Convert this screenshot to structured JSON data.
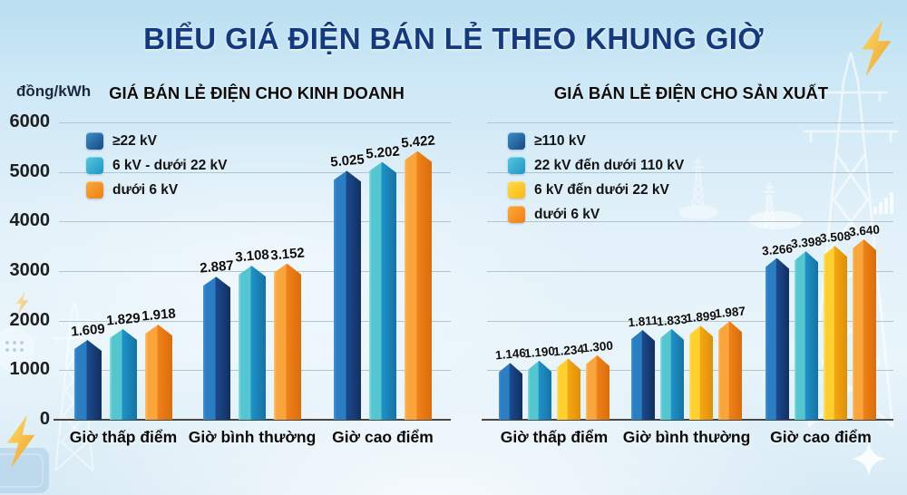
{
  "page": {
    "title": "BIỂU GIÁ ĐIỆN BÁN LẺ THEO KHUNG GIỜ",
    "unit_label": "đồng/kWh"
  },
  "decor": {
    "icons": [
      "lightning-bolt",
      "transmission-tower",
      "sparkle",
      "cloud",
      "mini-bar-chart"
    ],
    "bolt_color_top": "#ffdc63",
    "bolt_color_bottom": "#f29b1d",
    "line_art_color": "#ffffff"
  },
  "chart_data": [
    {
      "type": "bar",
      "title": "GIÁ BÁN LẺ ĐIỆN CHO KINH DOANH",
      "categories": [
        "Giờ thấp điểm",
        "Giờ bình thường",
        "Giờ cao điểm"
      ],
      "series": [
        {
          "name": "≥22 kV",
          "values": [
            1609,
            2887,
            5025
          ],
          "labels": [
            "1.609",
            "2.887",
            "5.025"
          ],
          "color_hi": "#4795d3",
          "color_light": "#2b7ec2",
          "color_dark": "#1a4b8e",
          "color_edge": "#122f60",
          "swatch_from": "#3f8cc9",
          "swatch_to": "#154a86"
        },
        {
          "name": "6 kV - dưới 22 kV",
          "values": [
            1829,
            3108,
            5202
          ],
          "labels": [
            "1.829",
            "3.108",
            "5.202"
          ],
          "color_hi": "#8adfe3",
          "color_light": "#53c6d0",
          "color_dark": "#1f92c9",
          "color_edge": "#1573a4",
          "swatch_from": "#55c8e0",
          "swatch_to": "#1e95c6"
        },
        {
          "name": "dưới 6 kV",
          "values": [
            1918,
            3152,
            5422
          ],
          "labels": [
            "1.918",
            "3.152",
            "5.422"
          ],
          "color_hi": "#fcc46d",
          "color_light": "#f9a53c",
          "color_dark": "#f0811a",
          "color_edge": "#da6e0b",
          "swatch_from": "#fbaa3c",
          "swatch_to": "#f07f12"
        }
      ],
      "ylabel": "đồng/kWh",
      "ylim": [
        0,
        6000
      ],
      "y_ticks": [
        0,
        1000,
        2000,
        3000,
        4000,
        5000,
        6000
      ],
      "grid": true,
      "legend_position": "top-left"
    },
    {
      "type": "bar",
      "title": "GIÁ BÁN LẺ ĐIỆN CHO SẢN XUẤT",
      "categories": [
        "Giờ thấp điểm",
        "Giờ bình thường",
        "Giờ cao điểm"
      ],
      "series": [
        {
          "name": "≥110 kV",
          "values": [
            1146,
            1811,
            3266
          ],
          "labels": [
            "1.146",
            "1.811",
            "3.266"
          ],
          "color_hi": "#4795d3",
          "color_light": "#2b7ec2",
          "color_dark": "#1a4b8e",
          "color_edge": "#122f60",
          "swatch_from": "#3f8cc9",
          "swatch_to": "#154a86"
        },
        {
          "name": "22 kV đến dưới 110 kV",
          "values": [
            1190,
            1833,
            3398
          ],
          "labels": [
            "1.190",
            "1.833",
            "3.398"
          ],
          "color_hi": "#8adfe3",
          "color_light": "#53c6d0",
          "color_dark": "#1f92c9",
          "color_edge": "#1573a4",
          "swatch_from": "#55c8e0",
          "swatch_to": "#1e95c6"
        },
        {
          "name": "6 kV đến dưới 22 kV",
          "values": [
            1234,
            1899,
            3508
          ],
          "labels": [
            "1.234",
            "1.899",
            "3.508"
          ],
          "color_hi": "#ffe37a",
          "color_light": "#ffd02e",
          "color_dark": "#f5a713",
          "color_edge": "#dd9007",
          "swatch_from": "#ffd84d",
          "swatch_to": "#fdb90d"
        },
        {
          "name": "dưới 6 kV",
          "values": [
            1300,
            1987,
            3640
          ],
          "labels": [
            "1.300",
            "1.987",
            "3.640"
          ],
          "color_hi": "#fcc46d",
          "color_light": "#f9a53c",
          "color_dark": "#f0811a",
          "color_edge": "#da6e0b",
          "swatch_from": "#fbaa3c",
          "swatch_to": "#f07f12"
        }
      ],
      "ylabel": "đồng/kWh",
      "ylim": [
        0,
        6000
      ],
      "y_ticks": [
        0,
        1000,
        2000,
        3000,
        4000,
        5000,
        6000
      ],
      "grid": true,
      "legend_position": "top-left"
    }
  ]
}
